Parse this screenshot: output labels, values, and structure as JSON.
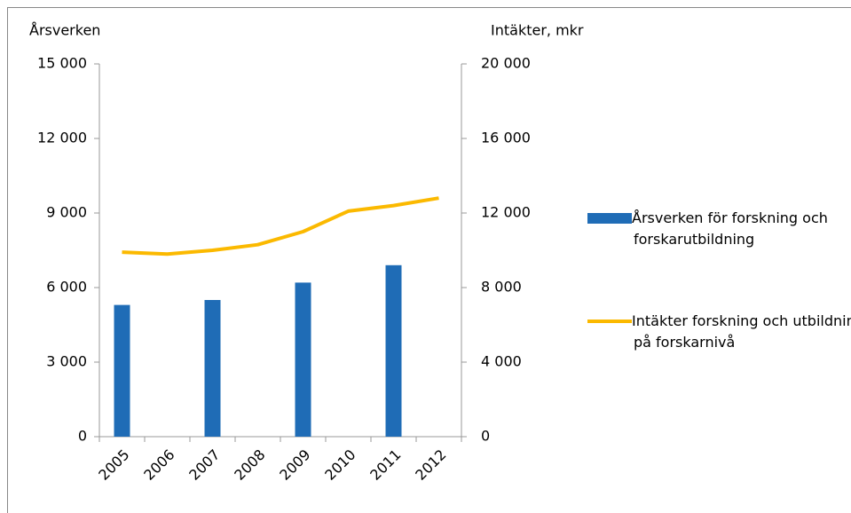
{
  "chart_data": {
    "type": "bar_line",
    "ylabel": "Årsverken",
    "y2label": "Intäkter, mkr",
    "categories": [
      "2005",
      "2006",
      "2007",
      "2008",
      "2009",
      "2010",
      "2011",
      "2012"
    ],
    "series": [
      {
        "name": "Årsverken för forskning och forskarutbildning",
        "type": "bar",
        "color": "#1f6cb6",
        "values": [
          5300,
          null,
          5500,
          null,
          6200,
          null,
          6900,
          null
        ]
      },
      {
        "name": "Intäkter forskning och utbildning på forskarnivå",
        "type": "line",
        "axis": "y2",
        "color": "#fbb900",
        "values": [
          9900,
          9800,
          10000,
          10300,
          11000,
          12100,
          12400,
          12800
        ]
      }
    ],
    "ylim": [
      0,
      15000
    ],
    "yticks": [
      0,
      {
        "value": 3000,
        "label": "3 000"
      },
      {
        "value": 6000,
        "label": "6 000"
      },
      {
        "value": 9000,
        "label": "9 000"
      },
      {
        "value": 12000,
        "label": "12 000"
      },
      {
        "value": 15000,
        "label": "15 000"
      }
    ],
    "y2lim": [
      0,
      20000
    ],
    "y2ticks": [
      0,
      {
        "value": 4000,
        "label": "4 000"
      },
      {
        "value": 8000,
        "label": "8 000"
      },
      {
        "value": 12000,
        "label": "12 000"
      },
      {
        "value": 16000,
        "label": "16 000"
      },
      {
        "value": 20000,
        "label": "20 000"
      }
    ],
    "grid": false,
    "legend": "right"
  }
}
